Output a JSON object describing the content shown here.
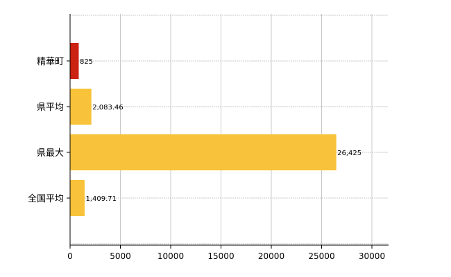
{
  "chart_data": {
    "type": "bar",
    "orientation": "horizontal",
    "categories": [
      "精華町",
      "県平均",
      "県最大",
      "全国平均"
    ],
    "values": [
      825,
      2083.46,
      26425,
      1409.71
    ],
    "data_labels": [
      "825",
      "2,083.46",
      "26,425",
      "1,409.71"
    ],
    "colors": [
      "#cc2211",
      "#f8c33a",
      "#f8c33a",
      "#f8c33a"
    ],
    "xlim": [
      0,
      32000
    ],
    "xticks": [
      0,
      5000,
      10000,
      15000,
      20000,
      25000,
      30000
    ],
    "xtick_labels": [
      "0",
      "5000",
      "10000",
      "15000",
      "20000",
      "25000",
      "30000"
    ],
    "grid": true,
    "title": "",
    "xlabel": "",
    "ylabel": ""
  }
}
